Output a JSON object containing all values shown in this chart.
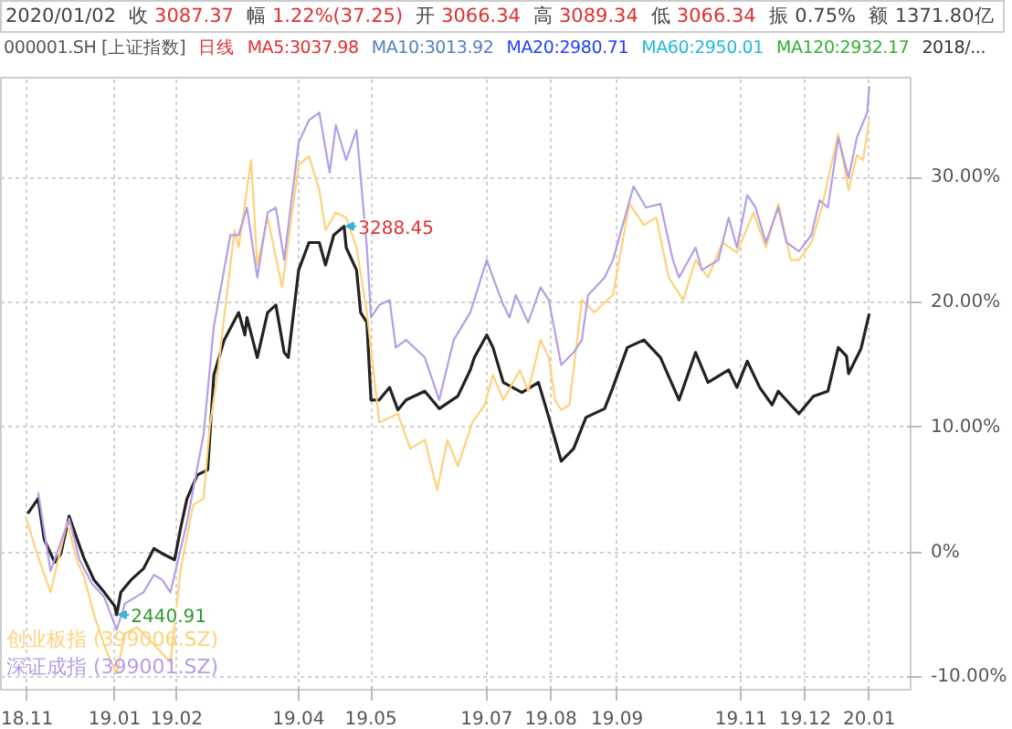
{
  "chart_data": {
    "type": "line",
    "annotations": [
      "2020/01/02",
      "收",
      "3087.37",
      "幅",
      "1.22%(37.25)",
      "开",
      "3066.34",
      "高",
      "3089.34",
      "低",
      "3066.34",
      "振 0.75%",
      "额 1371.80亿",
      "000001.SH [上证指数]",
      "日线",
      "MA5:3037.98",
      "MA10:3013.92",
      "MA20:2980.71",
      "MA60:2950.01",
      "MA120:2932.17",
      "2018/...",
      {
        "text": "3288.45",
        "x": "2019-04-23",
        "y": 26.1
      },
      {
        "text": "2440.91",
        "x": "2019-01-03",
        "y": -5.0
      }
    ],
    "xlim": [
      "2018-11-08",
      "2020-01-22"
    ],
    "ylim": [
      -11,
      38
    ],
    "xticks": [
      {
        "value": "2018-11-20",
        "label": "18.11"
      },
      {
        "value": "2019-01-02",
        "label": "19.01"
      },
      {
        "value": "2019-02-01",
        "label": "19.02"
      },
      {
        "value": "2019-04-01",
        "label": "19.04"
      },
      {
        "value": "2019-05-06",
        "label": "19.05"
      },
      {
        "value": "2019-07-01",
        "label": "19.07"
      },
      {
        "value": "2019-08-01",
        "label": "19.08"
      },
      {
        "value": "2019-09-02",
        "label": "19.09"
      },
      {
        "value": "2019-11-01",
        "label": "19.11"
      },
      {
        "value": "2019-12-02",
        "label": "19.12"
      },
      {
        "value": "2020-01-02",
        "label": "20.01"
      }
    ],
    "yticks": [
      {
        "value": -10,
        "label": "-10.00%"
      },
      {
        "value": 0,
        "label": "0%"
      },
      {
        "value": 10,
        "label": "10.00%"
      },
      {
        "value": 20,
        "label": "20.00%"
      },
      {
        "value": 30,
        "label": "30.00%"
      }
    ],
    "grid": true,
    "legend": "bottom left",
    "series": [
      {
        "color": "#222222",
        "x": [
          "2018-11-21",
          "2018-11-26",
          "2018-11-29",
          "2018-12-04",
          "2018-12-07",
          "2018-12-11",
          "2018-12-15",
          "2018-12-18",
          "2018-12-23",
          "2018-12-28",
          "2019-01-02",
          "2019-01-03",
          "2019-01-05",
          "2019-01-10",
          "2019-01-16",
          "2019-01-21",
          "2019-01-25",
          "2019-01-31",
          "2019-02-03",
          "2019-02-06",
          "2019-02-11",
          "2019-02-16",
          "2019-02-19",
          "2019-02-24",
          "2019-03-03",
          "2019-03-06",
          "2019-03-07",
          "2019-03-12",
          "2019-03-17",
          "2019-03-21",
          "2019-03-25",
          "2019-03-27",
          "2019-04-01",
          "2019-04-06",
          "2019-04-11",
          "2019-04-14",
          "2019-04-18",
          "2019-04-23",
          "2019-04-24",
          "2019-04-29",
          "2019-05-01",
          "2019-05-04",
          "2019-05-06",
          "2019-05-10",
          "2019-05-15",
          "2019-05-19",
          "2019-05-23",
          "2019-06-01",
          "2019-06-08",
          "2019-06-17",
          "2019-06-23",
          "2019-06-25",
          "2019-07-01",
          "2019-07-04",
          "2019-07-09",
          "2019-07-18",
          "2019-07-26",
          "2019-07-31",
          "2019-08-06",
          "2019-08-12",
          "2019-08-18",
          "2019-08-27",
          "2019-08-31",
          "2019-09-07",
          "2019-09-15",
          "2019-09-23",
          "2019-10-02",
          "2019-10-10",
          "2019-10-16",
          "2019-10-26",
          "2019-10-30",
          "2019-11-04",
          "2019-11-10",
          "2019-11-16",
          "2019-11-19",
          "2019-11-25",
          "2019-11-29",
          "2019-12-06",
          "2019-12-13",
          "2019-12-18",
          "2019-12-22",
          "2019-12-23",
          "2019-12-29",
          "2020-01-02"
        ],
        "values": [
          3.1,
          4.3,
          1.0,
          -0.8,
          -0.1,
          2.9,
          1.0,
          -0.4,
          -2.2,
          -3.2,
          -4.3,
          -5.0,
          -3.2,
          -2.2,
          -1.3,
          0.3,
          -0.1,
          -0.6,
          2.0,
          4.3,
          6.2,
          6.6,
          14.2,
          17.0,
          19.2,
          17.4,
          18.8,
          15.6,
          19.2,
          19.8,
          16.0,
          15.6,
          22.6,
          24.8,
          24.8,
          23.0,
          25.4,
          26.1,
          24.4,
          22.6,
          19.2,
          18.4,
          12.2,
          12.2,
          13.2,
          11.4,
          12.2,
          12.9,
          11.5,
          12.5,
          14.6,
          15.6,
          17.4,
          16.4,
          13.6,
          12.8,
          13.6,
          10.8,
          7.3,
          8.3,
          10.8,
          11.5,
          13.2,
          16.4,
          17.0,
          15.6,
          12.2,
          16.0,
          13.6,
          14.6,
          13.2,
          15.3,
          13.2,
          11.8,
          12.9,
          11.8,
          11.1,
          12.5,
          12.9,
          16.4,
          15.7,
          14.3,
          16.3,
          19.1
        ]
      },
      {
        "name": "创业板指 (399006.SZ)",
        "color": "#ffd27a",
        "x": [
          "2018-11-20",
          "2018-11-25",
          "2018-12-02",
          "2018-12-10",
          "2018-12-15",
          "2018-12-18",
          "2018-12-23",
          "2018-12-29",
          "2019-01-03",
          "2019-01-07",
          "2019-01-13",
          "2019-01-21",
          "2019-01-29",
          "2019-02-03",
          "2019-02-09",
          "2019-02-14",
          "2019-02-17",
          "2019-02-21",
          "2019-03-01",
          "2019-03-03",
          "2019-03-09",
          "2019-03-12",
          "2019-03-17",
          "2019-03-24",
          "2019-04-01",
          "2019-04-06",
          "2019-04-11",
          "2019-04-14",
          "2019-04-19",
          "2019-04-24",
          "2019-04-29",
          "2019-05-04",
          "2019-05-10",
          "2019-05-19",
          "2019-05-25",
          "2019-06-01",
          "2019-06-07",
          "2019-06-12",
          "2019-06-17",
          "2019-06-24",
          "2019-06-30",
          "2019-07-04",
          "2019-07-09",
          "2019-07-17",
          "2019-07-21",
          "2019-07-27",
          "2019-07-31",
          "2019-08-03",
          "2019-08-06",
          "2019-08-10",
          "2019-08-16",
          "2019-08-22",
          "2019-08-31",
          "2019-09-08",
          "2019-09-15",
          "2019-09-21",
          "2019-09-27",
          "2019-10-04",
          "2019-10-10",
          "2019-10-16",
          "2019-10-23",
          "2019-10-30",
          "2019-11-07",
          "2019-11-13",
          "2019-11-19",
          "2019-11-25",
          "2019-11-29",
          "2019-12-05",
          "2019-12-10",
          "2019-12-18",
          "2019-12-23",
          "2019-12-27",
          "2019-12-30",
          "2020-01-02"
        ],
        "values": [
          2.9,
          0.1,
          -3.2,
          2.4,
          -0.8,
          -1.8,
          -5.0,
          -7.9,
          -9.7,
          -6.5,
          -6.0,
          -7.4,
          -8.8,
          -1.3,
          3.8,
          4.3,
          10.0,
          14.6,
          25.8,
          24.4,
          31.4,
          23.0,
          26.8,
          21.2,
          31.0,
          31.7,
          29.0,
          25.8,
          27.2,
          26.8,
          24.4,
          19.2,
          10.4,
          11.1,
          8.3,
          9.0,
          5.0,
          9.0,
          6.9,
          10.4,
          11.8,
          14.2,
          12.2,
          14.6,
          12.9,
          17.0,
          15.6,
          12.2,
          11.4,
          11.8,
          20.2,
          19.2,
          20.6,
          27.9,
          26.2,
          26.8,
          22.0,
          20.2,
          23.4,
          22.0,
          24.8,
          24.0,
          27.2,
          24.4,
          27.9,
          23.4,
          23.4,
          24.8,
          27.6,
          33.5,
          29.0,
          31.8,
          31.4,
          34.6
        ]
      },
      {
        "name": "深证成指 (399001.SZ)",
        "color": "#b49ee6",
        "x": [
          "2018-11-26",
          "2018-12-02",
          "2018-12-11",
          "2018-12-16",
          "2018-12-22",
          "2018-12-28",
          "2019-01-03",
          "2019-01-07",
          "2019-01-16",
          "2019-01-21",
          "2019-01-25",
          "2019-01-29",
          "2019-02-06",
          "2019-02-14",
          "2019-02-19",
          "2019-02-27",
          "2019-03-03",
          "2019-03-07",
          "2019-03-12",
          "2019-03-17",
          "2019-03-21",
          "2019-03-25",
          "2019-04-01",
          "2019-04-06",
          "2019-04-11",
          "2019-04-16",
          "2019-04-19",
          "2019-04-24",
          "2019-04-29",
          "2019-05-04",
          "2019-05-06",
          "2019-05-10",
          "2019-05-15",
          "2019-05-18",
          "2019-05-23",
          "2019-06-01",
          "2019-06-08",
          "2019-06-15",
          "2019-06-23",
          "2019-07-01",
          "2019-07-04",
          "2019-07-09",
          "2019-07-12",
          "2019-07-15",
          "2019-07-21",
          "2019-07-27",
          "2019-07-31",
          "2019-08-06",
          "2019-08-12",
          "2019-08-16",
          "2019-08-19",
          "2019-08-27",
          "2019-08-31",
          "2019-09-10",
          "2019-09-16",
          "2019-09-23",
          "2019-09-29",
          "2019-10-02",
          "2019-10-10",
          "2019-10-13",
          "2019-10-21",
          "2019-10-26",
          "2019-10-30",
          "2019-11-04",
          "2019-11-08",
          "2019-11-13",
          "2019-11-19",
          "2019-11-23",
          "2019-11-29",
          "2019-12-05",
          "2019-12-09",
          "2019-12-13",
          "2019-12-18",
          "2019-12-23",
          "2019-12-27",
          "2020-01-01",
          "2020-01-02"
        ],
        "values": [
          4.8,
          -1.5,
          2.7,
          -0.6,
          -2.5,
          -3.6,
          -6.2,
          -4.1,
          -3.2,
          -1.8,
          -2.2,
          -3.2,
          2.4,
          9.4,
          18.1,
          25.4,
          25.4,
          27.6,
          22.0,
          27.2,
          27.6,
          23.4,
          32.8,
          34.6,
          35.2,
          30.4,
          34.2,
          31.4,
          33.8,
          24.4,
          18.8,
          19.8,
          20.2,
          16.4,
          17.0,
          15.6,
          12.2,
          17.0,
          19.2,
          23.4,
          22.0,
          19.8,
          18.8,
          20.6,
          18.4,
          21.2,
          20.2,
          15.0,
          16.0,
          17.0,
          20.6,
          22.0,
          23.4,
          29.3,
          27.6,
          27.9,
          23.4,
          22.0,
          24.4,
          22.6,
          23.4,
          26.8,
          24.4,
          28.6,
          27.6,
          24.8,
          27.6,
          24.8,
          24.1,
          25.4,
          28.2,
          27.6,
          33.2,
          30.0,
          33.2,
          35.2,
          37.3
        ]
      }
    ]
  }
}
